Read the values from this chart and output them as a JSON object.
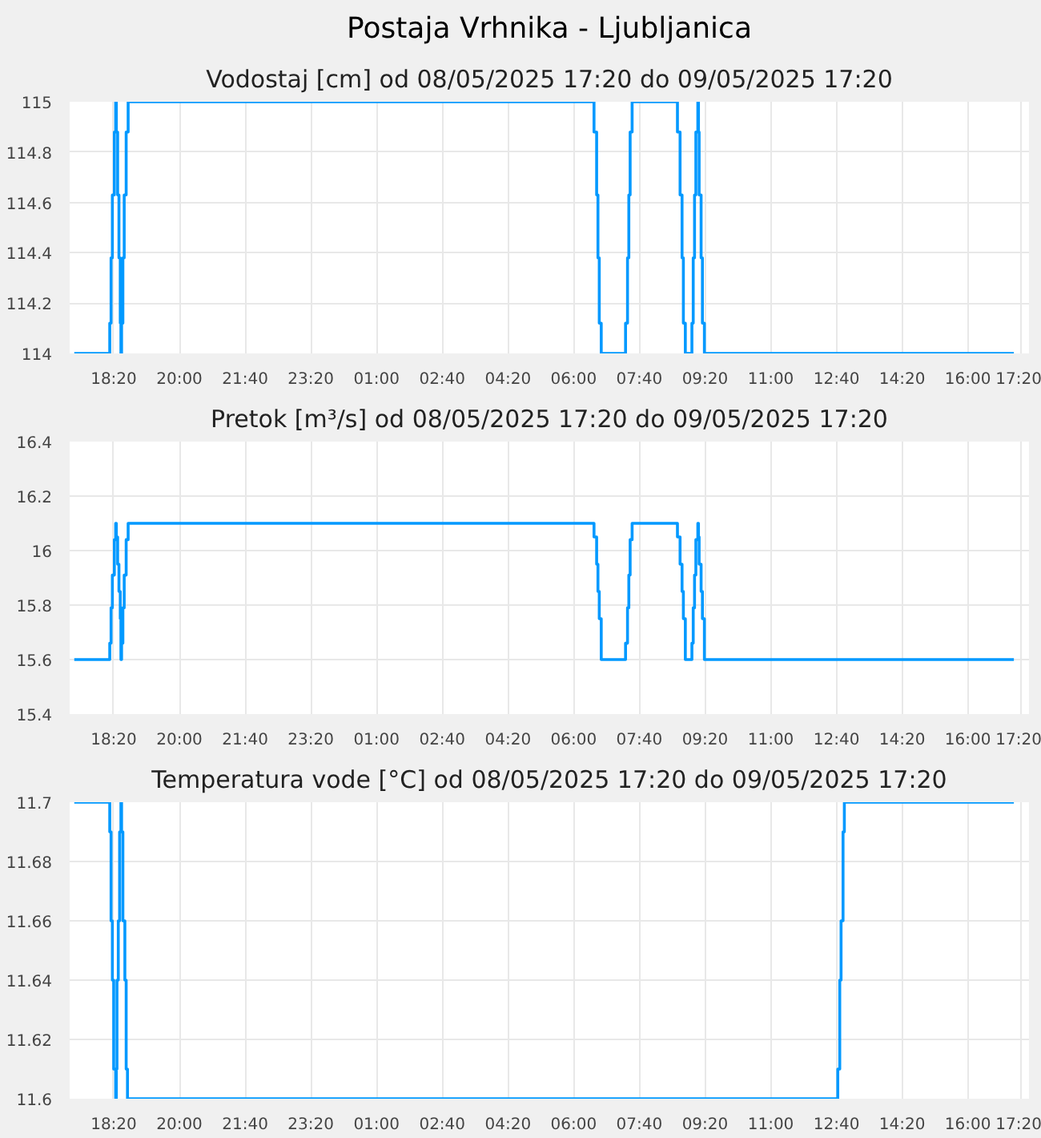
{
  "chart_data": [
    {
      "type": "step",
      "title": "Postaja Vrhnika - Ljubljanica",
      "subtitle": "Vodostaj [cm] od 08/05/2025 17:20 do 09/05/2025 17:20",
      "grid": true,
      "xlim": [
        "2025-05-08T17:13",
        "2025-05-09T17:33"
      ],
      "xticks": [
        {
          "value": "2025-05-08T18:20",
          "label": "18:20"
        },
        {
          "value": "2025-05-08T20:00",
          "label": "20:00"
        },
        {
          "value": "2025-05-08T21:40",
          "label": "21:40"
        },
        {
          "value": "2025-05-08T23:20",
          "label": "23:20"
        },
        {
          "value": "2025-05-09T01:00",
          "label": "01:00"
        },
        {
          "value": "2025-05-09T02:40",
          "label": "02:40"
        },
        {
          "value": "2025-05-09T04:20",
          "label": "04:20"
        },
        {
          "value": "2025-05-09T06:00",
          "label": "06:00"
        },
        {
          "value": "2025-05-09T07:40",
          "label": "07:40"
        },
        {
          "value": "2025-05-09T09:20",
          "label": "09:20"
        },
        {
          "value": "2025-05-09T11:00",
          "label": "11:00"
        },
        {
          "value": "2025-05-09T12:40",
          "label": "12:40"
        },
        {
          "value": "2025-05-09T14:20",
          "label": "14:20"
        },
        {
          "value": "2025-05-09T16:00",
          "label": "16:00"
        },
        {
          "value": "2025-05-09T17:20",
          "label": "17:20"
        }
      ],
      "ylim": [
        114,
        115
      ],
      "yticks": [
        114,
        114.2,
        114.4,
        114.6,
        114.8,
        115
      ],
      "series": [
        {
          "color": "#0099ff",
          "x": [
            "2025-05-08T17:20",
            "2025-05-08T18:14",
            "2025-05-08T18:16",
            "2025-05-08T18:18",
            "2025-05-08T18:21",
            "2025-05-08T18:23",
            "2025-05-08T18:24",
            "2025-05-08T18:26",
            "2025-05-08T18:28",
            "2025-05-08T18:30",
            "2025-05-08T18:31",
            "2025-05-08T18:32",
            "2025-05-08T18:34",
            "2025-05-08T18:36",
            "2025-05-08T18:39",
            "2025-05-08T18:42",
            "2025-05-09T06:31",
            "2025-05-09T06:35",
            "2025-05-09T06:37",
            "2025-05-09T06:39",
            "2025-05-09T06:42",
            "2025-05-09T07:19",
            "2025-05-09T07:22",
            "2025-05-09T07:24",
            "2025-05-09T07:26",
            "2025-05-09T07:29",
            "2025-05-09T08:38",
            "2025-05-09T08:42",
            "2025-05-09T08:45",
            "2025-05-09T08:47",
            "2025-05-09T08:50",
            "2025-05-09T09:00",
            "2025-05-09T09:02",
            "2025-05-09T09:04",
            "2025-05-09T09:06",
            "2025-05-09T09:09",
            "2025-05-09T09:10",
            "2025-05-09T09:11",
            "2025-05-09T09:14",
            "2025-05-09T09:16",
            "2025-05-09T09:19",
            "2025-05-09T17:10"
          ],
          "values": [
            114,
            114.12,
            114.38,
            114.63,
            114.88,
            115,
            114.88,
            114.63,
            114.38,
            114.12,
            114,
            114.12,
            114.38,
            114.63,
            114.88,
            115,
            114.88,
            114.63,
            114.38,
            114.12,
            114,
            114.12,
            114.38,
            114.63,
            114.88,
            115,
            114.88,
            114.63,
            114.38,
            114.12,
            114,
            114.12,
            114.38,
            114.63,
            114.88,
            115,
            114.88,
            114.63,
            114.38,
            114.12,
            114,
            114
          ]
        }
      ]
    },
    {
      "type": "step",
      "title": "Pretok [m³/s] od 08/05/2025 17:20 do 09/05/2025 17:20",
      "grid": true,
      "xlim": [
        "2025-05-08T17:13",
        "2025-05-09T17:33"
      ],
      "xticks": [
        {
          "value": "2025-05-08T18:20",
          "label": "18:20"
        },
        {
          "value": "2025-05-08T20:00",
          "label": "20:00"
        },
        {
          "value": "2025-05-08T21:40",
          "label": "21:40"
        },
        {
          "value": "2025-05-08T23:20",
          "label": "23:20"
        },
        {
          "value": "2025-05-09T01:00",
          "label": "01:00"
        },
        {
          "value": "2025-05-09T02:40",
          "label": "02:40"
        },
        {
          "value": "2025-05-09T04:20",
          "label": "04:20"
        },
        {
          "value": "2025-05-09T06:00",
          "label": "06:00"
        },
        {
          "value": "2025-05-09T07:40",
          "label": "07:40"
        },
        {
          "value": "2025-05-09T09:20",
          "label": "09:20"
        },
        {
          "value": "2025-05-09T11:00",
          "label": "11:00"
        },
        {
          "value": "2025-05-09T12:40",
          "label": "12:40"
        },
        {
          "value": "2025-05-09T14:20",
          "label": "14:20"
        },
        {
          "value": "2025-05-09T16:00",
          "label": "16:00"
        },
        {
          "value": "2025-05-09T17:20",
          "label": "17:20"
        }
      ],
      "ylim": [
        15.4,
        16.4
      ],
      "yticks": [
        15.4,
        15.6,
        15.8,
        16,
        16.2,
        16.4
      ],
      "series": [
        {
          "color": "#0099ff",
          "x": [
            "2025-05-08T17:20",
            "2025-05-08T18:14",
            "2025-05-08T18:16",
            "2025-05-08T18:18",
            "2025-05-08T18:21",
            "2025-05-08T18:23",
            "2025-05-08T18:24",
            "2025-05-08T18:26",
            "2025-05-08T18:28",
            "2025-05-08T18:30",
            "2025-05-08T18:31",
            "2025-05-08T18:32",
            "2025-05-08T18:34",
            "2025-05-08T18:36",
            "2025-05-08T18:39",
            "2025-05-08T18:42",
            "2025-05-09T06:31",
            "2025-05-09T06:35",
            "2025-05-09T06:37",
            "2025-05-09T06:39",
            "2025-05-09T06:42",
            "2025-05-09T07:19",
            "2025-05-09T07:22",
            "2025-05-09T07:24",
            "2025-05-09T07:26",
            "2025-05-09T07:29",
            "2025-05-09T08:38",
            "2025-05-09T08:42",
            "2025-05-09T08:45",
            "2025-05-09T08:47",
            "2025-05-09T08:50",
            "2025-05-09T09:00",
            "2025-05-09T09:02",
            "2025-05-09T09:04",
            "2025-05-09T09:06",
            "2025-05-09T09:09",
            "2025-05-09T09:10",
            "2025-05-09T09:11",
            "2025-05-09T09:14",
            "2025-05-09T09:16",
            "2025-05-09T09:19",
            "2025-05-09T17:10"
          ],
          "values": [
            15.6,
            15.66,
            15.79,
            15.91,
            16.04,
            16.1,
            16.05,
            15.95,
            15.85,
            15.75,
            15.6,
            15.66,
            15.79,
            15.91,
            16.04,
            16.1,
            16.05,
            15.95,
            15.85,
            15.75,
            15.6,
            15.66,
            15.79,
            15.91,
            16.04,
            16.1,
            16.05,
            15.95,
            15.85,
            15.75,
            15.6,
            15.66,
            15.79,
            15.91,
            16.04,
            16.1,
            16.05,
            15.95,
            15.85,
            15.75,
            15.6,
            15.6
          ]
        }
      ]
    },
    {
      "type": "step",
      "title": "Temperatura vode [°C] od 08/05/2025 17:20 do 09/05/2025 17:20",
      "grid": true,
      "xlim": [
        "2025-05-08T17:13",
        "2025-05-09T17:33"
      ],
      "xticks": [
        {
          "value": "2025-05-08T18:20",
          "label": "18:20"
        },
        {
          "value": "2025-05-08T20:00",
          "label": "20:00"
        },
        {
          "value": "2025-05-08T21:40",
          "label": "21:40"
        },
        {
          "value": "2025-05-08T23:20",
          "label": "23:20"
        },
        {
          "value": "2025-05-09T01:00",
          "label": "01:00"
        },
        {
          "value": "2025-05-09T02:40",
          "label": "02:40"
        },
        {
          "value": "2025-05-09T04:20",
          "label": "04:20"
        },
        {
          "value": "2025-05-09T06:00",
          "label": "06:00"
        },
        {
          "value": "2025-05-09T07:40",
          "label": "07:40"
        },
        {
          "value": "2025-05-09T09:20",
          "label": "09:20"
        },
        {
          "value": "2025-05-09T11:00",
          "label": "11:00"
        },
        {
          "value": "2025-05-09T12:40",
          "label": "12:40"
        },
        {
          "value": "2025-05-09T14:20",
          "label": "14:20"
        },
        {
          "value": "2025-05-09T16:00",
          "label": "16:00"
        },
        {
          "value": "2025-05-09T17:20",
          "label": "17:20"
        }
      ],
      "ylim": [
        11.6,
        11.7
      ],
      "yticks": [
        11.6,
        11.62,
        11.64,
        11.66,
        11.68,
        11.7
      ],
      "series": [
        {
          "color": "#0099ff",
          "x": [
            "2025-05-08T17:20",
            "2025-05-08T18:14",
            "2025-05-08T18:16",
            "2025-05-08T18:18",
            "2025-05-08T18:20",
            "2025-05-08T18:23",
            "2025-05-08T18:24",
            "2025-05-08T18:25",
            "2025-05-08T18:27",
            "2025-05-08T18:29",
            "2025-05-08T18:31",
            "2025-05-08T18:32",
            "2025-05-08T18:34",
            "2025-05-08T18:37",
            "2025-05-08T18:39",
            "2025-05-08T18:41",
            "2025-05-09T12:42",
            "2025-05-09T12:45",
            "2025-05-09T12:47",
            "2025-05-09T12:50",
            "2025-05-09T12:52",
            "2025-05-09T17:10"
          ],
          "values": [
            11.7,
            11.69,
            11.66,
            11.64,
            11.61,
            11.6,
            11.61,
            11.64,
            11.66,
            11.69,
            11.7,
            11.69,
            11.66,
            11.64,
            11.61,
            11.6,
            11.61,
            11.64,
            11.66,
            11.69,
            11.7,
            11.7
          ]
        }
      ]
    }
  ]
}
